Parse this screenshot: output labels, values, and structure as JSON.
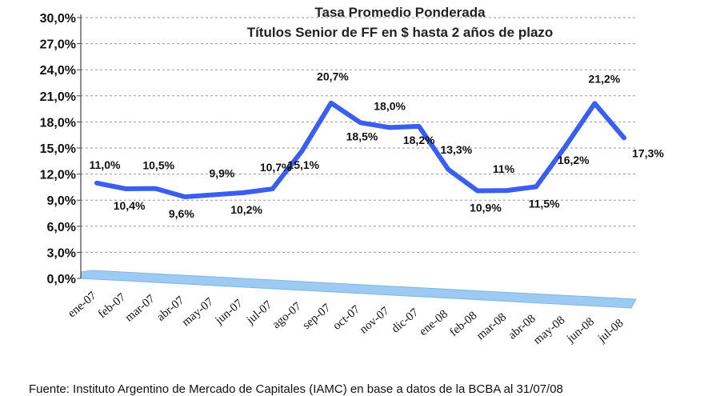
{
  "chart_data": {
    "type": "line",
    "title": "Tasa Promedio Ponderada",
    "subtitle": "Títulos Senior de FF en $ hasta 2 años de plazo",
    "categories": [
      "ene-07",
      "feb-07",
      "mar-07",
      "abr-07",
      "may-07",
      "jun-07",
      "jul-07",
      "ago-07",
      "sep-07",
      "oct-07",
      "nov-07",
      "dic-07",
      "ene-08",
      "feb-08",
      "mar-08",
      "abr-08",
      "may-08",
      "jun-08",
      "jul-08"
    ],
    "y_ticks": [
      "0,0%",
      "3,0%",
      "6,0%",
      "9,0%",
      "12,0%",
      "15,0%",
      "18,0%",
      "21,0%",
      "24,0%",
      "27,0%",
      "30,0%"
    ],
    "ylim": [
      0,
      30
    ],
    "grid": true,
    "series": [
      {
        "values": [
          11.0,
          10.4,
          10.5,
          9.6,
          9.9,
          10.2,
          10.7,
          15.1,
          20.7,
          18.5,
          18.0,
          18.2,
          13.3,
          10.9,
          11.0,
          11.5,
          16.2,
          21.2,
          17.3
        ],
        "labels": [
          "11,0%",
          "10,4%",
          "10,5%",
          "9,6%",
          "9,9%",
          "10,2%",
          "10,7%",
          "15,1%",
          "20,7%",
          "18,5%",
          "18,0%",
          "18,2%",
          "13,3%",
          "10,9%",
          "11%",
          "11,5%",
          "16,2%",
          "21,2%",
          "17,3%"
        ],
        "color": "#3a5ff0"
      }
    ],
    "floor_color": "#9ccaf0"
  },
  "source": "Fuente: Instituto Argentino de Mercado de Capitales (IAMC) en base a datos de la BCBA al 31/07/08"
}
